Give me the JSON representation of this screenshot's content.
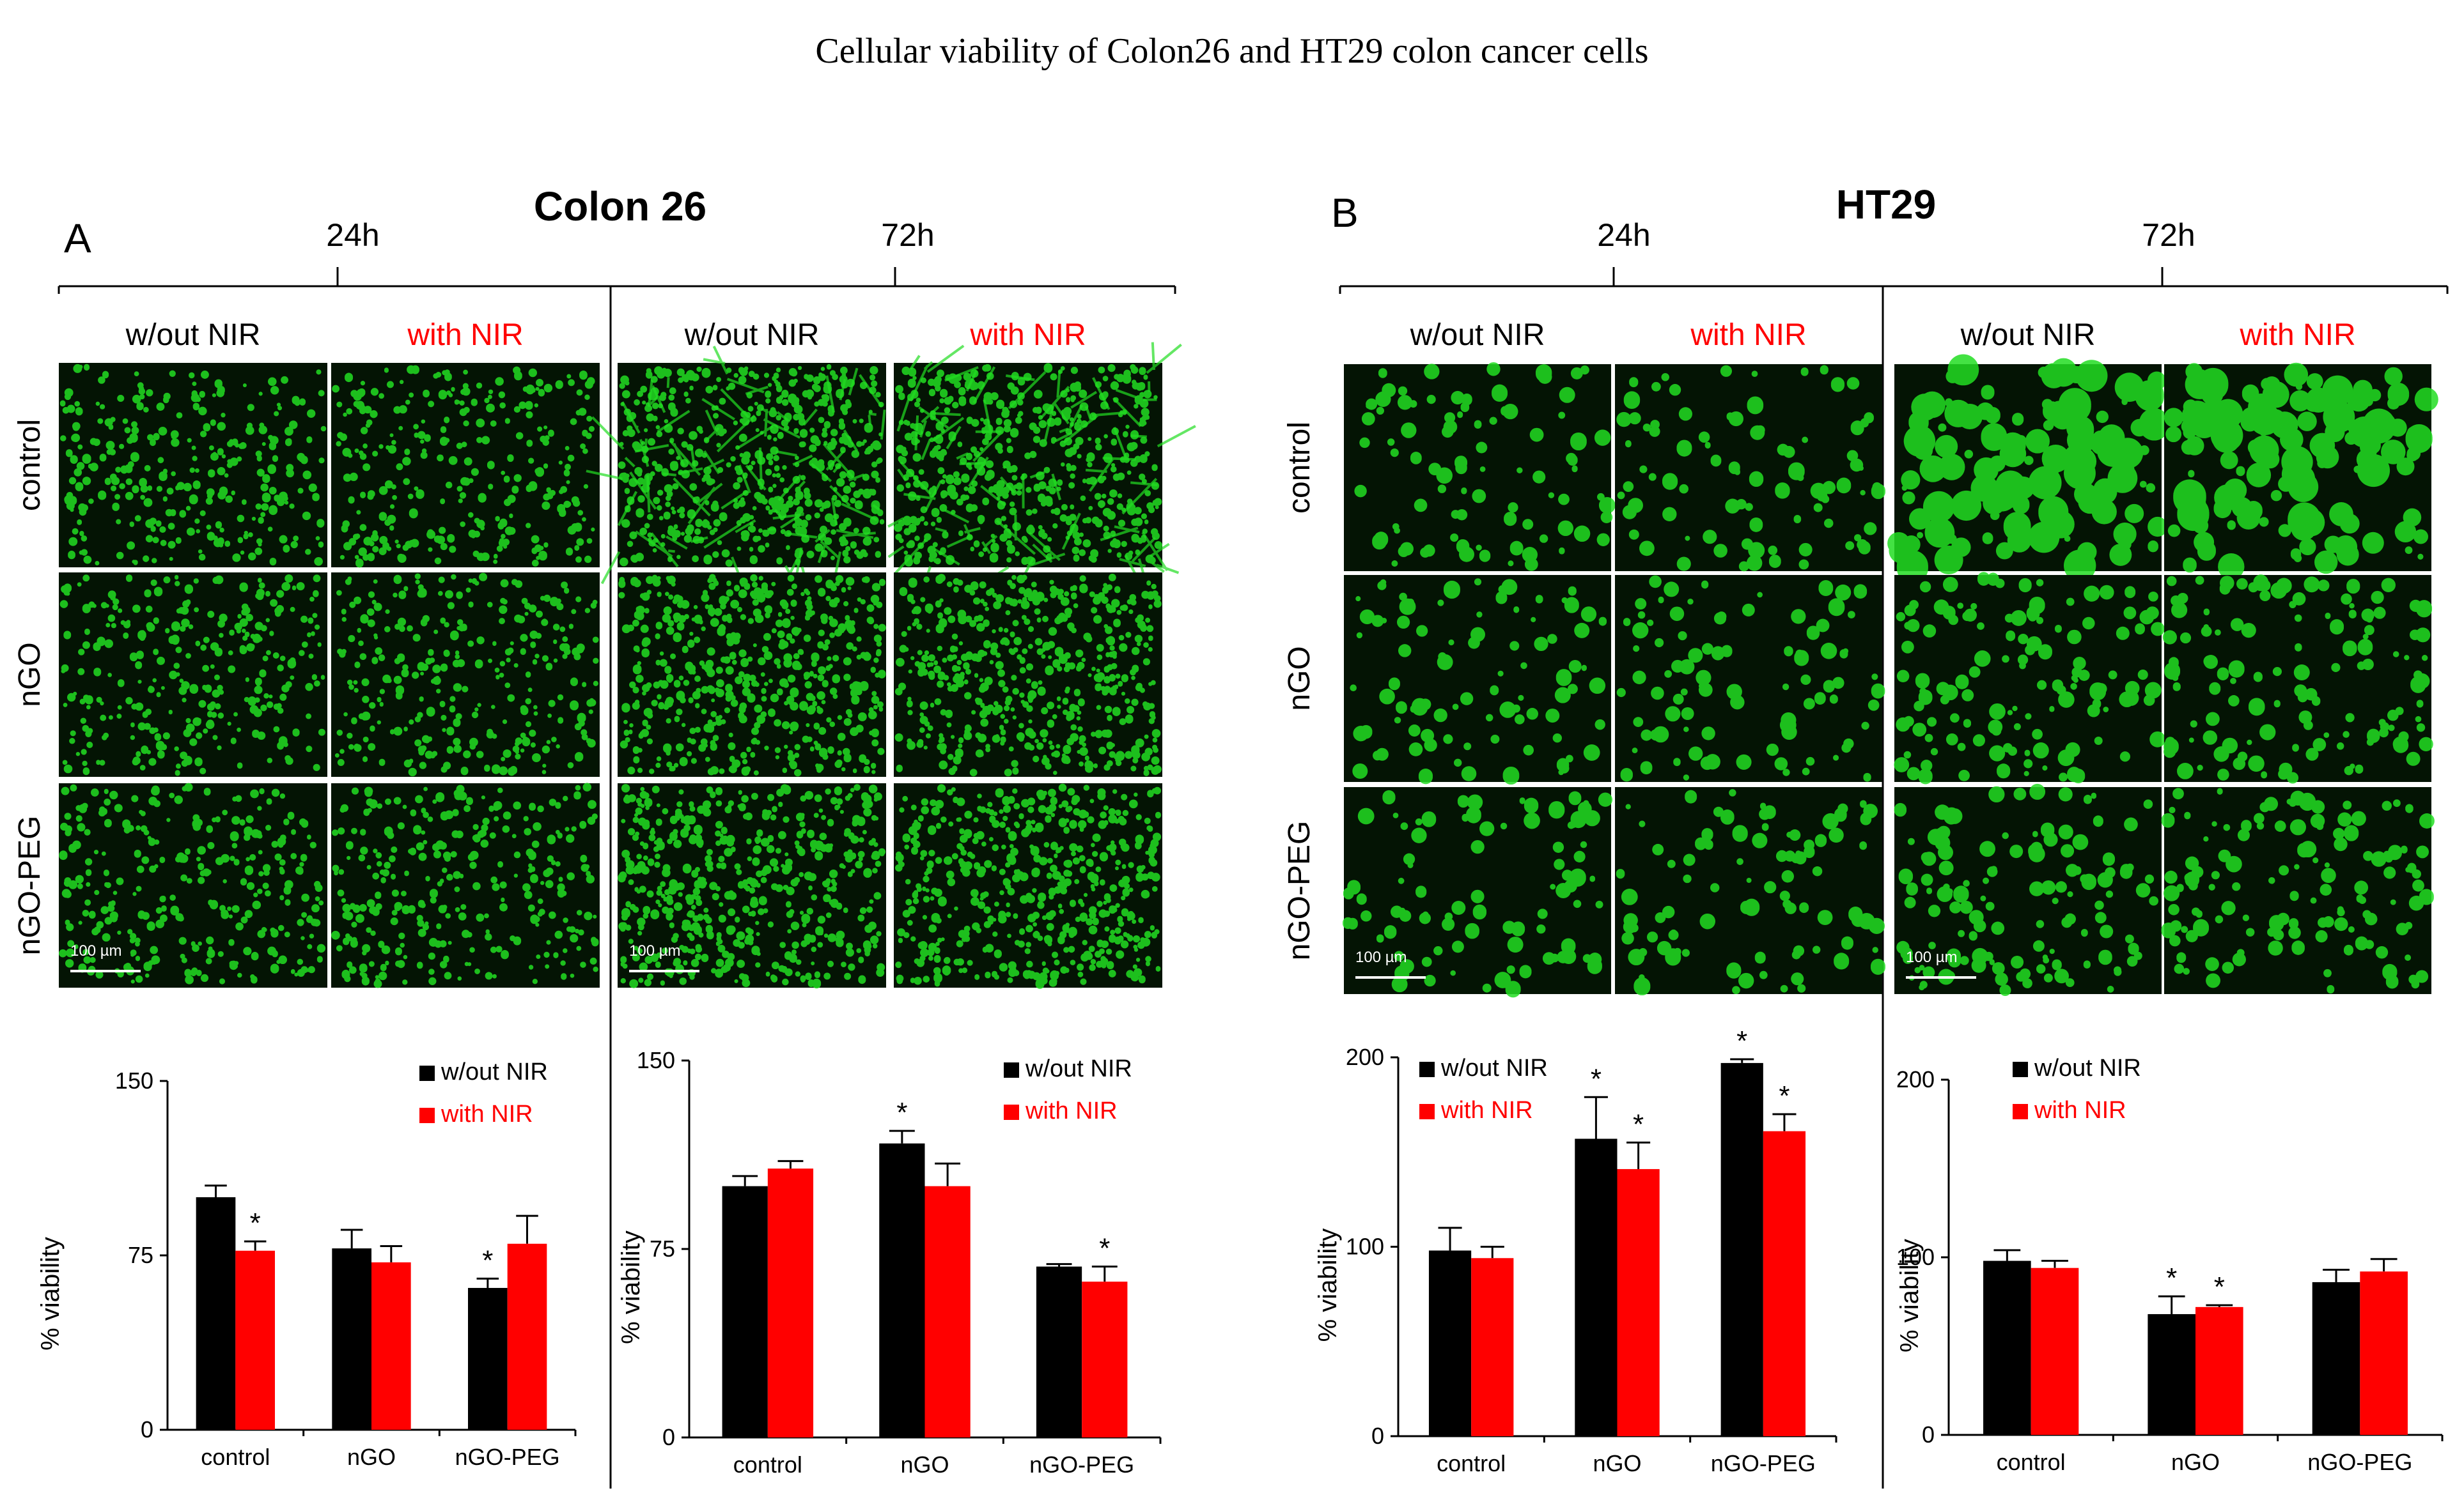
{
  "figure_title": "Cellular viability of Colon26 and HT29 colon cancer cells",
  "colors": {
    "without_nir": "#000000",
    "with_nir": "#ff0000",
    "cell_green": "#22dd22",
    "micro_bg": "#041404"
  },
  "panels": [
    {
      "letter": "A",
      "cell_line": "Colon 26",
      "times": [
        "24h",
        "72h"
      ],
      "col_labels": [
        "w/out NIR",
        "with NIR",
        "w/out NIR",
        "with NIR"
      ],
      "row_labels": [
        "control",
        "nGO",
        "nGO-PEG"
      ],
      "scale_bar": "100 µm"
    },
    {
      "letter": "B",
      "cell_line": "HT29",
      "times": [
        "24h",
        "72h"
      ],
      "col_labels": [
        "w/out NIR",
        "with NIR",
        "w/out NIR",
        "with NIR"
      ],
      "row_labels": [
        "control",
        "nGO",
        "nGO-PEG"
      ],
      "scale_bar": "100 µm"
    }
  ],
  "chart_data": [
    {
      "type": "bar",
      "panel": "A",
      "time": "24h",
      "categories": [
        "control",
        "nGO",
        "nGO-PEG"
      ],
      "series": [
        {
          "name": "w/out NIR",
          "values": [
            100,
            78,
            61
          ],
          "errors": [
            5,
            8,
            4
          ],
          "significant": [
            false,
            false,
            true
          ]
        },
        {
          "name": "with NIR",
          "values": [
            77,
            72,
            80
          ],
          "errors": [
            4,
            7,
            12
          ],
          "significant": [
            true,
            false,
            false
          ]
        }
      ],
      "ylabel": "% viability",
      "ylim": [
        0,
        150
      ],
      "yticks": [
        0,
        75,
        150
      ],
      "legend": "top-right"
    },
    {
      "type": "bar",
      "panel": "A",
      "time": "72h",
      "categories": [
        "control",
        "nGO",
        "nGO-PEG"
      ],
      "series": [
        {
          "name": "w/out NIR",
          "values": [
            100,
            117,
            68
          ],
          "errors": [
            4,
            5,
            1
          ],
          "significant": [
            false,
            true,
            false
          ]
        },
        {
          "name": "with NIR",
          "values": [
            107,
            100,
            62
          ],
          "errors": [
            3,
            9,
            6
          ],
          "significant": [
            false,
            false,
            true
          ]
        }
      ],
      "ylabel": "% viability",
      "ylim": [
        0,
        150
      ],
      "yticks": [
        0,
        75,
        150
      ],
      "legend": "top-right"
    },
    {
      "type": "bar",
      "panel": "B",
      "time": "24h",
      "categories": [
        "control",
        "nGO",
        "nGO-PEG"
      ],
      "series": [
        {
          "name": "w/out NIR",
          "values": [
            98,
            157,
            197
          ],
          "errors": [
            12,
            22,
            2
          ],
          "significant": [
            false,
            true,
            true
          ]
        },
        {
          "name": "with NIR",
          "values": [
            94,
            141,
            161
          ],
          "errors": [
            6,
            14,
            9
          ],
          "significant": [
            false,
            true,
            true
          ]
        }
      ],
      "ylabel": "% viability",
      "ylim": [
        0,
        200
      ],
      "yticks": [
        0,
        100,
        200
      ],
      "legend": "top-left"
    },
    {
      "type": "bar",
      "panel": "B",
      "time": "72h",
      "categories": [
        "control",
        "nGO",
        "nGO-PEG"
      ],
      "series": [
        {
          "name": "w/out NIR",
          "values": [
            98,
            68,
            86
          ],
          "errors": [
            6,
            10,
            7
          ],
          "significant": [
            false,
            true,
            false
          ]
        },
        {
          "name": "with NIR",
          "values": [
            94,
            72,
            92
          ],
          "errors": [
            4,
            1,
            7
          ],
          "significant": [
            false,
            true,
            false
          ]
        }
      ],
      "ylabel": "% viability",
      "ylim": [
        0,
        200
      ],
      "yticks": [
        0,
        100,
        200
      ],
      "legend": "top-left"
    }
  ]
}
